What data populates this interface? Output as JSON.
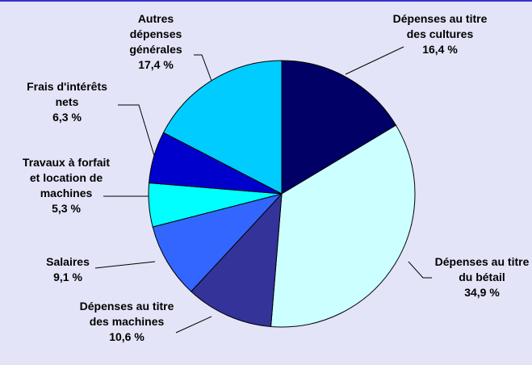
{
  "chart_data": {
    "type": "pie",
    "categories": [
      "Dépenses au titre des cultures",
      "Dépenses au titre du bétail",
      "Dépenses au titre des machines",
      "Salaires",
      "Travaux à forfait et location de machines",
      "Frais d'intérêts nets",
      "Autres dépenses générales"
    ],
    "values": [
      16.4,
      34.9,
      10.6,
      9.1,
      5.3,
      6.3,
      17.4
    ],
    "value_labels": [
      "16,4 %",
      "34,9 %",
      "10,6 %",
      "9,1 %",
      "5,3 %",
      "6,3 %",
      "17,4 %"
    ],
    "colors": [
      "#000066",
      "#ccffff",
      "#333399",
      "#3366ff",
      "#00ffff",
      "#0000cc",
      "#00ccff"
    ]
  }
}
